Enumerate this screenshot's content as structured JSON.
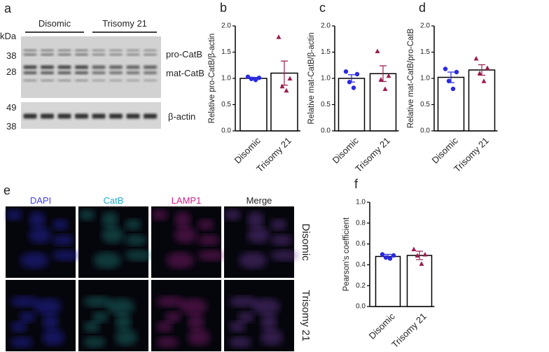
{
  "blot": {
    "label": "a",
    "groups": [
      "Disomic",
      "Trisomy 21"
    ],
    "unit": "kDa",
    "markers": [
      "38",
      "28",
      "49",
      "38"
    ],
    "bands": [
      "pro-CatB",
      "mat-CatB",
      "β-actin"
    ]
  },
  "microscopy": {
    "label": "e",
    "channels": [
      "DAPI",
      "CatB",
      "LAMP1",
      "Merge"
    ],
    "rows": [
      "Disomic",
      "Trisomy 21"
    ]
  },
  "chart_data": [
    {
      "type": "bar",
      "label": "b",
      "y_label": "Relative pro-CatB/β-actin",
      "categories": [
        "Disomic",
        "Trisomy 21"
      ],
      "values": [
        1.0,
        1.1
      ],
      "errors": [
        0.02,
        0.23
      ],
      "points": [
        [
          1.03,
          1.01,
          0.99,
          0.97
        ],
        [
          1.79,
          1.0,
          0.85,
          0.77
        ]
      ],
      "colors": [
        "#2a2ae0",
        "#9b1e4f"
      ],
      "markers": [
        "circle",
        "triangle"
      ],
      "ylim": [
        0,
        2
      ],
      "yticks": [
        {
          "value": 0,
          "label": "0.0"
        },
        0.5,
        {
          "value": 1,
          "label": "1.0"
        },
        1.5,
        {
          "value": 2,
          "label": "2.0"
        }
      ]
    },
    {
      "type": "bar",
      "label": "c",
      "y_label": "Relative mat-CatB/β-actin",
      "categories": [
        "Disomic",
        "Trisomy 21"
      ],
      "values": [
        1.0,
        1.09
      ],
      "errors": [
        0.07,
        0.15
      ],
      "points": [
        [
          1.13,
          1.08,
          0.93,
          0.82
        ],
        [
          1.52,
          1.05,
          0.98,
          0.8
        ]
      ],
      "colors": [
        "#2a2ae0",
        "#9b1e4f"
      ],
      "markers": [
        "circle",
        "triangle"
      ],
      "ylim": [
        0,
        2
      ],
      "yticks": [
        {
          "value": 0,
          "label": "0.0"
        },
        0.5,
        {
          "value": 1,
          "label": "1.0"
        },
        1.5,
        {
          "value": 2,
          "label": "2.0"
        }
      ]
    },
    {
      "type": "bar",
      "label": "d",
      "y_label": "Relative mat-CatB/pro-CatB",
      "categories": [
        "Disomic",
        "Trisomy 21"
      ],
      "values": [
        1.02,
        1.16
      ],
      "errors": [
        0.1,
        0.1
      ],
      "points": [
        [
          1.18,
          1.12,
          0.95,
          0.8
        ],
        [
          1.38,
          1.2,
          1.1,
          0.95
        ]
      ],
      "colors": [
        "#2a2ae0",
        "#9b1e4f"
      ],
      "markers": [
        "circle",
        "triangle"
      ],
      "ylim": [
        0,
        2
      ],
      "yticks": [
        {
          "value": 0,
          "label": "0.0"
        },
        0.5,
        {
          "value": 1,
          "label": "1.0"
        },
        1.5,
        {
          "value": 2,
          "label": "2.0"
        }
      ]
    },
    {
      "type": "bar",
      "label": "f",
      "y_label": "Pearson's coefficient",
      "categories": [
        "Disomic",
        "Trisomy 21"
      ],
      "values": [
        0.48,
        0.49
      ],
      "errors": [
        0.02,
        0.04
      ],
      "points": [
        [
          0.5,
          0.49,
          0.47,
          0.46
        ],
        [
          0.55,
          0.5,
          0.49,
          0.41
        ]
      ],
      "colors": [
        "#2a2ae0",
        "#9b1e4f"
      ],
      "markers": [
        "circle",
        "triangle"
      ],
      "ylim": [
        0,
        1
      ],
      "yticks": [
        {
          "value": 0,
          "label": "0.0"
        },
        0.2,
        0.4,
        0.6,
        0.8,
        {
          "value": 1,
          "label": "1.0"
        }
      ]
    }
  ]
}
